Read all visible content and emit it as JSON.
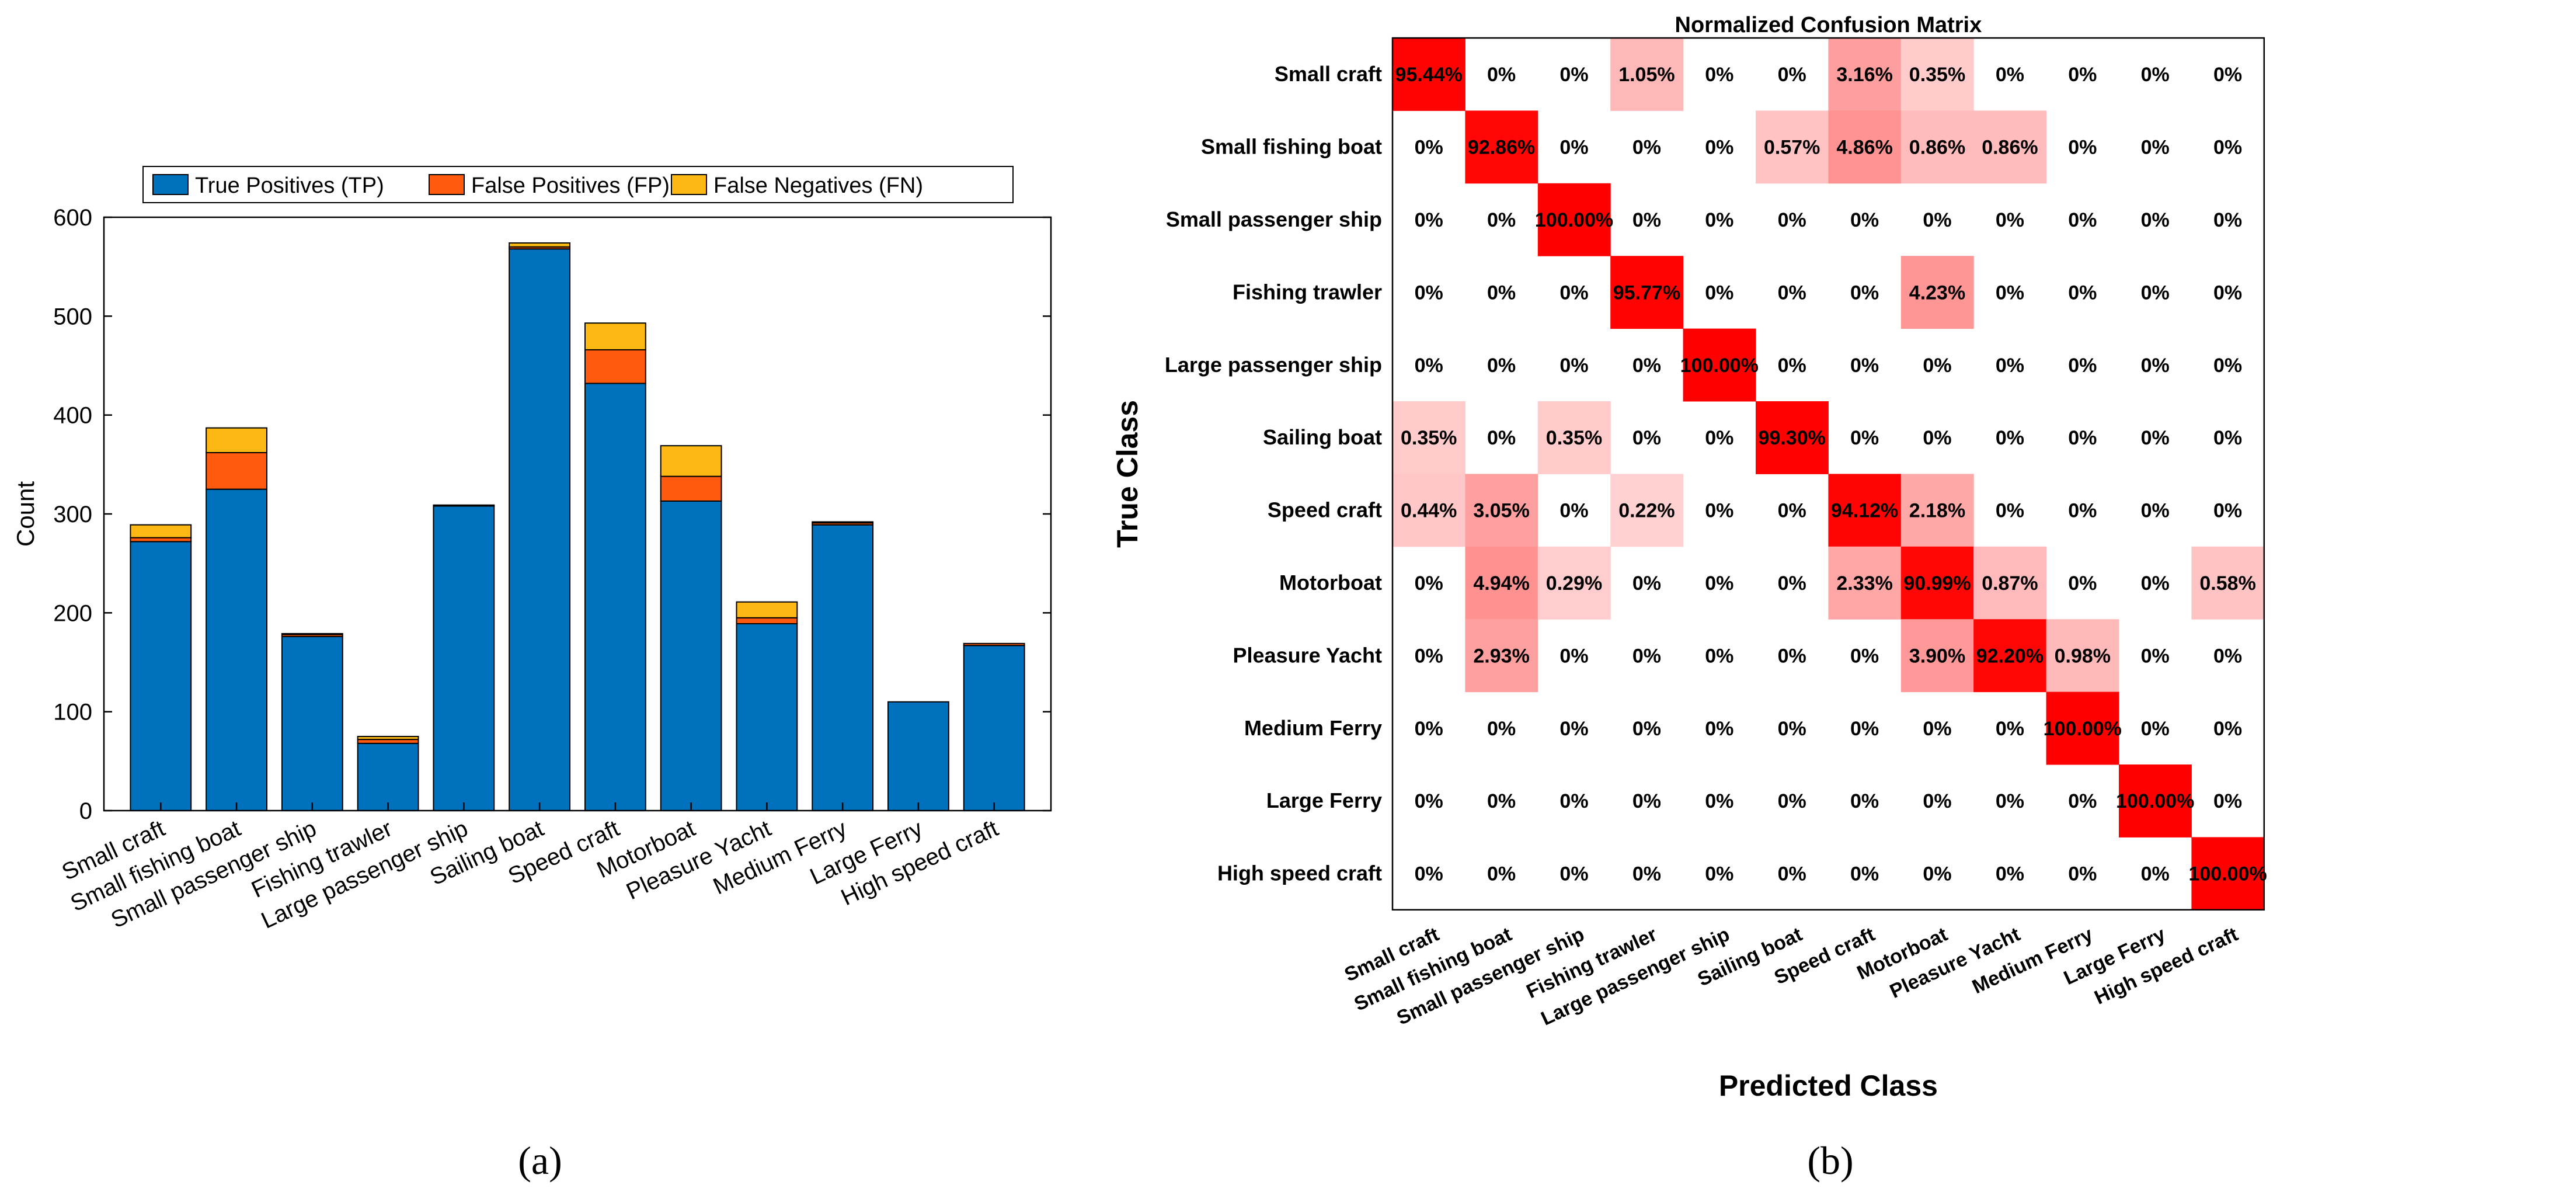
{
  "chart_data": [
    {
      "type": "bar",
      "stacked": true,
      "title": "",
      "xlabel": "",
      "ylabel": "Count",
      "ylim": [
        0,
        600
      ],
      "yticks": [
        0,
        100,
        200,
        300,
        400,
        500,
        600
      ],
      "legend_position": "top",
      "categories": [
        "Small craft",
        "Small fishing boat",
        "Small passenger ship",
        "Fishing trawler",
        "Large passenger ship",
        "Sailing boat",
        "Speed craft",
        "Motorboat",
        "Pleasure Yacht",
        "Medium Ferry",
        "Large Ferry",
        "High speed craft"
      ],
      "series": [
        {
          "name": "True Positives (TP)",
          "color": "#0072BD",
          "values": [
            272,
            325,
            176,
            68,
            308,
            568,
            432,
            313,
            189,
            289,
            110,
            167
          ]
        },
        {
          "name": "False Positives (FP)",
          "color": "#FF5A0E",
          "values": [
            4,
            37,
            2,
            4,
            0,
            2,
            34,
            25,
            6,
            2,
            0,
            2
          ]
        },
        {
          "name": "False Negatives (FN)",
          "color": "#FDB813",
          "values": [
            13,
            25,
            1,
            3,
            1,
            4,
            27,
            31,
            16,
            1,
            0,
            0
          ]
        }
      ],
      "caption": "(a)"
    },
    {
      "type": "heatmap",
      "title": "Normalized Confusion Matrix",
      "xlabel": "Predicted Class",
      "ylabel": "True Class",
      "classes": [
        "Small craft",
        "Small fishing boat",
        "Small passenger ship",
        "Fishing trawler",
        "Large passenger ship",
        "Sailing boat",
        "Speed craft",
        "Motorboat",
        "Pleasure Yacht",
        "Medium Ferry",
        "Large Ferry",
        "High speed craft"
      ],
      "values": [
        [
          95.44,
          0,
          0,
          1.05,
          0,
          0,
          3.16,
          0.35,
          0,
          0,
          0,
          0
        ],
        [
          0,
          92.86,
          0,
          0,
          0,
          0.57,
          4.86,
          0.86,
          0.86,
          0,
          0,
          0
        ],
        [
          0,
          0,
          100.0,
          0,
          0,
          0,
          0,
          0,
          0,
          0,
          0,
          0
        ],
        [
          0,
          0,
          0,
          95.77,
          0,
          0,
          0,
          4.23,
          0,
          0,
          0,
          0
        ],
        [
          0,
          0,
          0,
          0,
          100.0,
          0,
          0,
          0,
          0,
          0,
          0,
          0
        ],
        [
          0.35,
          0,
          0.35,
          0,
          0,
          99.3,
          0,
          0,
          0,
          0,
          0,
          0
        ],
        [
          0.44,
          3.05,
          0,
          0.22,
          0,
          0,
          94.12,
          2.18,
          0,
          0,
          0,
          0
        ],
        [
          0,
          4.94,
          0.29,
          0,
          0,
          0,
          2.33,
          90.99,
          0.87,
          0,
          0,
          0.58
        ],
        [
          0,
          2.93,
          0,
          0,
          0,
          0,
          0,
          3.9,
          92.2,
          0.98,
          0,
          0
        ],
        [
          0,
          0,
          0,
          0,
          0,
          0,
          0,
          0,
          0,
          100.0,
          0,
          0
        ],
        [
          0,
          0,
          0,
          0,
          0,
          0,
          0,
          0,
          0,
          0,
          100.0,
          0
        ],
        [
          0,
          0,
          0,
          0,
          0,
          0,
          0,
          0,
          0,
          0,
          0,
          100.0
        ]
      ],
      "labels": [
        [
          "95.44%",
          "0%",
          "0%",
          "1.05%",
          "0%",
          "0%",
          "3.16%",
          "0.35%",
          "0%",
          "0%",
          "0%",
          "0%"
        ],
        [
          "0%",
          "92.86%",
          "0%",
          "0%",
          "0%",
          "0.57%",
          "4.86%",
          "0.86%",
          "0.86%",
          "0%",
          "0%",
          "0%"
        ],
        [
          "0%",
          "0%",
          "100.00%",
          "0%",
          "0%",
          "0%",
          "0%",
          "0%",
          "0%",
          "0%",
          "0%",
          "0%"
        ],
        [
          "0%",
          "0%",
          "0%",
          "95.77%",
          "0%",
          "0%",
          "0%",
          "4.23%",
          "0%",
          "0%",
          "0%",
          "0%"
        ],
        [
          "0%",
          "0%",
          "0%",
          "0%",
          "100.00%",
          "0%",
          "0%",
          "0%",
          "0%",
          "0%",
          "0%",
          "0%"
        ],
        [
          "0.35%",
          "0%",
          "0.35%",
          "0%",
          "0%",
          "99.30%",
          "0%",
          "0%",
          "0%",
          "0%",
          "0%",
          "0%"
        ],
        [
          "0.44%",
          "3.05%",
          "0%",
          "0.22%",
          "0%",
          "0%",
          "94.12%",
          "2.18%",
          "0%",
          "0%",
          "0%",
          "0%"
        ],
        [
          "0%",
          "4.94%",
          "0.29%",
          "0%",
          "0%",
          "0%",
          "2.33%",
          "90.99%",
          "0.87%",
          "0%",
          "0%",
          "0.58%"
        ],
        [
          "0%",
          "2.93%",
          "0%",
          "0%",
          "0%",
          "0%",
          "0%",
          "3.90%",
          "92.20%",
          "0.98%",
          "0%",
          "0%"
        ],
        [
          "0%",
          "0%",
          "0%",
          "0%",
          "0%",
          "0%",
          "0%",
          "0%",
          "0%",
          "100.00%",
          "0%",
          "0%"
        ],
        [
          "0%",
          "0%",
          "0%",
          "0%",
          "0%",
          "0%",
          "0%",
          "0%",
          "0%",
          "0%",
          "100.00%",
          "0%"
        ],
        [
          "0%",
          "0%",
          "0%",
          "0%",
          "0%",
          "0%",
          "0%",
          "0%",
          "0%",
          "0%",
          "0%",
          "100.00%"
        ]
      ],
      "colormap": {
        "low": "#FFFFFF",
        "high": "#FF0000"
      },
      "caption": "(b)"
    }
  ]
}
